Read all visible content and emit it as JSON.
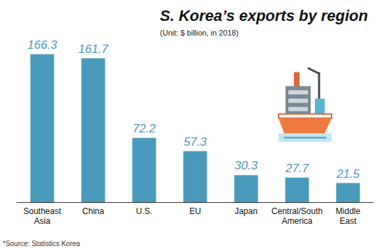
{
  "chart_data": {
    "type": "bar",
    "title": "S. Korea’s exports by region",
    "subtitle": "(Unit: $ billion, in 2018)",
    "source": "*Source: Statistics Korea",
    "categories": [
      "Southeast Asia",
      "China",
      "U.S.",
      "EU",
      "Japan",
      "Central/South America",
      "Middle East"
    ],
    "values": [
      166.3,
      161.7,
      72.2,
      57.3,
      30.3,
      27.7,
      21.5
    ],
    "color": "#4a9bbb",
    "ylim": [
      0,
      170
    ],
    "yticks": [
      0,
      170
    ],
    "grid": false,
    "data_labels": true,
    "tick_labels": "x"
  }
}
